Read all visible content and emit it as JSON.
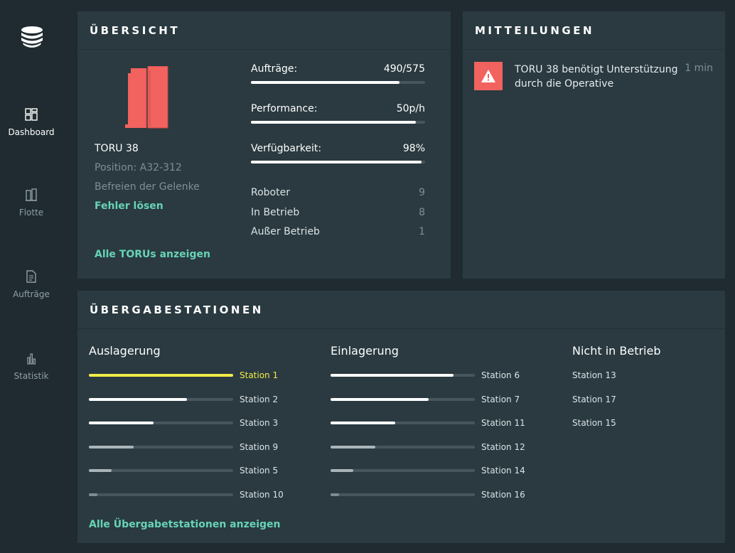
{
  "sidebar": {
    "items": [
      {
        "label": "Dashboard",
        "icon": "dashboard-icon",
        "active": true
      },
      {
        "label": "Flotte",
        "icon": "fleet-icon",
        "active": false
      },
      {
        "label": "Aufträge",
        "icon": "document-icon",
        "active": false
      },
      {
        "label": "Statistik",
        "icon": "bar-chart-icon",
        "active": false
      }
    ]
  },
  "overview": {
    "title": "ÜBERSICHT",
    "robot": {
      "name": "TORU 38",
      "position": "Position: A32-312",
      "task": "Befreien der Gelenke",
      "fix_link": "Fehler lösen",
      "color": "#f2625f"
    },
    "show_all_link": "Alle TORUs anzeigen",
    "metrics": [
      {
        "label": "Aufträge:",
        "value": "490/575",
        "fraction": 0.852
      },
      {
        "label": "Performance:",
        "value": "50p/h",
        "fraction": 0.945
      },
      {
        "label": "Verfügbarkeit:",
        "value": "98%",
        "fraction": 0.98
      }
    ],
    "counts": [
      {
        "label": "Roboter",
        "value": "9"
      },
      {
        "label": "In Betrieb",
        "value": "8"
      },
      {
        "label": "Außer Betrieb",
        "value": "1"
      }
    ]
  },
  "messages": {
    "title": "MITTEILUNGEN",
    "items": [
      {
        "text": "TORU 38 benötigt Unterstützung durch die Operative",
        "time": "1 min",
        "icon": "warning-icon",
        "color": "#f2625f"
      }
    ]
  },
  "stations": {
    "title": "ÜBERGABESTATIONEN",
    "outbound": {
      "title": "Auslagerung",
      "items": [
        {
          "label": "Station 1",
          "fraction": 1.0,
          "highlight": true
        },
        {
          "label": "Station 2",
          "fraction": 0.68
        },
        {
          "label": "Station 3",
          "fraction": 0.45
        },
        {
          "label": "Station 9",
          "fraction": 0.31
        },
        {
          "label": "Station 5",
          "fraction": 0.16
        },
        {
          "label": "Station 10",
          "fraction": 0.06
        }
      ]
    },
    "inbound": {
      "title": "Einlagerung",
      "items": [
        {
          "label": "Station 6",
          "fraction": 0.85
        },
        {
          "label": "Station 7",
          "fraction": 0.68
        },
        {
          "label": "Station 11",
          "fraction": 0.45
        },
        {
          "label": "Station 12",
          "fraction": 0.31
        },
        {
          "label": "Station 14",
          "fraction": 0.16
        },
        {
          "label": "Station 16",
          "fraction": 0.06
        }
      ]
    },
    "inactive": {
      "title": "Nicht in Betrieb",
      "items": [
        {
          "label": "Station 13"
        },
        {
          "label": "Station 17"
        },
        {
          "label": "Station 15"
        }
      ]
    },
    "show_all_link": "Alle Übergabetstationen anzeigen",
    "highlight_color": "#f2ec4a"
  }
}
